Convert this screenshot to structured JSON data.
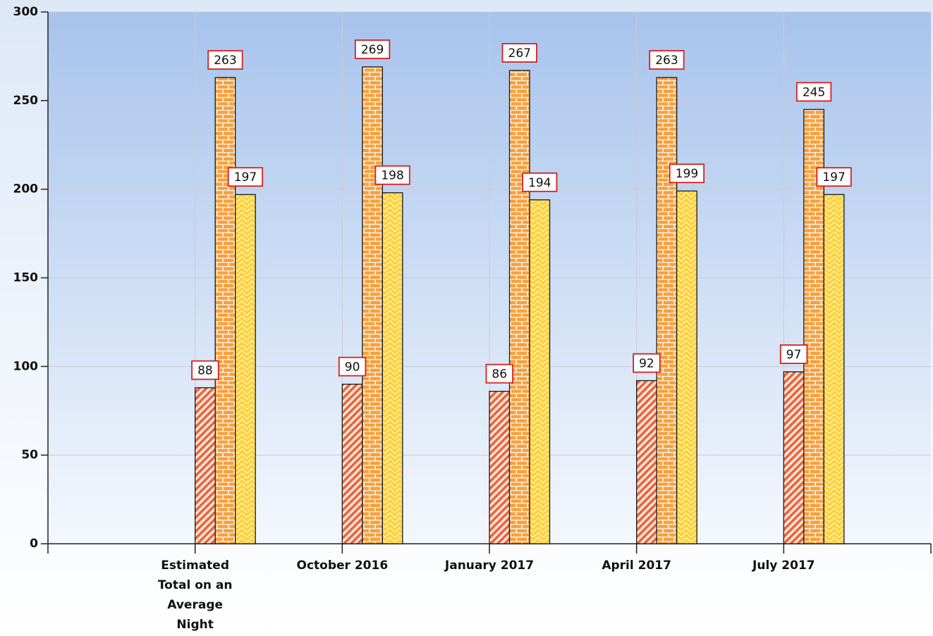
{
  "chart_data": {
    "type": "bar",
    "categories": [
      "Estimated Total on an Average Night",
      "October 2016",
      "January 2017",
      "April 2017",
      "July 2017"
    ],
    "series": [
      {
        "color": "#e8643c",
        "values": [
          88,
          90,
          86,
          92,
          97
        ]
      },
      {
        "color": "#f7a040",
        "values": [
          263,
          269,
          267,
          263,
          245
        ]
      },
      {
        "color": "#ffd23c",
        "values": [
          197,
          198,
          194,
          199,
          197
        ]
      }
    ],
    "ylim": [
      0,
      300
    ],
    "yticks": [
      0,
      50,
      100,
      150,
      200,
      250,
      300
    ],
    "grid": true
  }
}
